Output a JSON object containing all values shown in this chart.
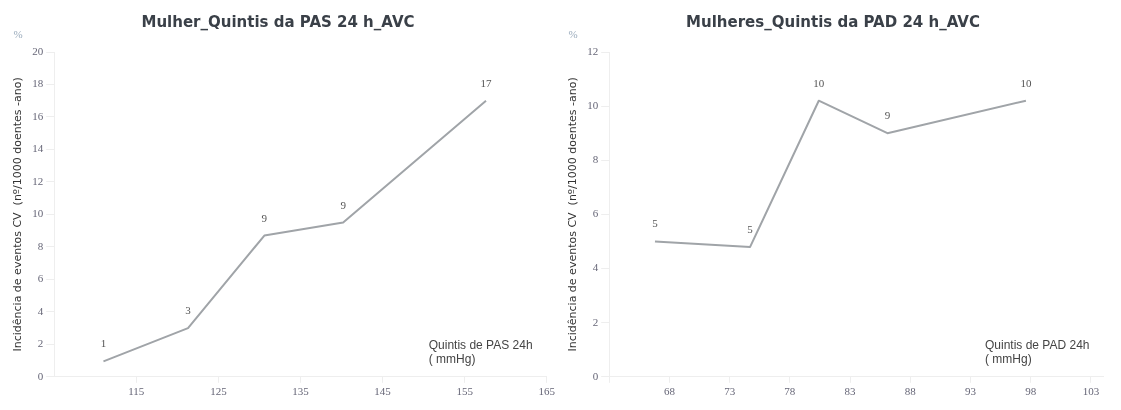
{
  "chart_data": [
    {
      "type": "line",
      "title": "Mulher_Quintis da PAS 24 h_AVC",
      "xlabel": "Quintis de PAS 24h\n( mmHg)",
      "ylabel": "Incidência de eventos CV  (nº/1000 doentes -ano)",
      "annotations": [
        "%"
      ],
      "x": [
        111,
        121.3,
        130.6,
        140.2,
        157.6
      ],
      "series": [
        {
          "color": "#a0a4a8",
          "values": [
            0.95,
            3,
            8.7,
            9.5,
            17
          ],
          "value_labels": [
            "1",
            "3",
            "9",
            "9",
            "17"
          ]
        }
      ],
      "xlim": [
        105,
        165
      ],
      "xticks": [
        115,
        125,
        135,
        145,
        155,
        165
      ],
      "ylim": [
        0,
        20
      ],
      "yticks": [
        0,
        2,
        4,
        6,
        8,
        10,
        12,
        14,
        16,
        18,
        20
      ],
      "grid": false,
      "legend": false,
      "marker": "none",
      "line_style": "solid"
    },
    {
      "type": "line",
      "title": "Mulheres_Quintis da PAD 24 h_AVC",
      "xlabel": "Quintis de PAD 24h\n( mmHg)",
      "ylabel": "Incidência de eventos CV  (nº/1000 doentes -ano)",
      "annotations": [
        "%"
      ],
      "x": [
        66.8,
        74.7,
        80.4,
        86.1,
        97.6
      ],
      "series": [
        {
          "color": "#a0a4a8",
          "values": [
            5,
            4.8,
            10.2,
            9,
            10.2
          ],
          "value_labels": [
            "5",
            "5",
            "10",
            "9",
            "10"
          ]
        }
      ],
      "xlim": [
        63,
        104
      ],
      "xticks": [
        {
          "value": 63,
          "label": null
        },
        68,
        73,
        78,
        83,
        88,
        93,
        98,
        103
      ],
      "ylim": [
        0,
        12
      ],
      "yticks": [
        0,
        2,
        4,
        6,
        8,
        10,
        12
      ],
      "grid": false,
      "legend": false,
      "marker": "none",
      "line_style": "solid"
    }
  ]
}
